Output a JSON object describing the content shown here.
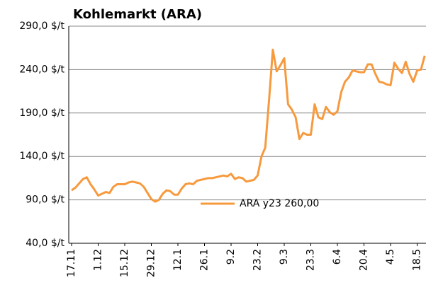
{
  "chart_data": {
    "type": "line",
    "title": "Kohlemarkt (ARA)",
    "categories": [
      "17.11",
      null,
      null,
      null,
      null,
      null,
      null,
      "1.12",
      null,
      null,
      null,
      null,
      null,
      null,
      "15.12",
      null,
      null,
      null,
      null,
      null,
      null,
      "29.12",
      null,
      null,
      null,
      null,
      null,
      null,
      "12.1",
      null,
      null,
      null,
      null,
      null,
      null,
      "26.1",
      null,
      null,
      null,
      null,
      null,
      null,
      "9.2",
      null,
      null,
      null,
      null,
      null,
      null,
      "23.2",
      null,
      null,
      null,
      null,
      null,
      null,
      "9.3",
      null,
      null,
      null,
      null,
      null,
      null,
      "23.3",
      null,
      null,
      null,
      null,
      null,
      null,
      "6.4",
      null,
      null,
      null,
      null,
      null,
      null,
      "20.4",
      null,
      null,
      null,
      null,
      null,
      null,
      "4.5",
      null,
      null,
      null,
      null,
      null,
      null,
      "18.5",
      null,
      null
    ],
    "series": [
      {
        "name": "ARA y23 260,00",
        "color": "#f79a3e",
        "values": [
          101,
          104,
          109,
          114,
          116,
          108,
          102,
          95,
          97,
          99,
          98,
          105,
          108,
          108,
          108,
          110,
          111,
          110,
          109,
          105,
          98,
          91,
          88,
          90,
          97,
          101,
          100,
          96,
          96,
          103,
          108,
          109,
          108,
          112,
          113,
          114,
          115,
          115,
          116,
          117,
          118,
          117,
          120,
          114,
          116,
          115,
          111,
          112,
          113,
          118,
          140,
          150,
          205,
          263,
          238,
          245,
          253,
          200,
          194,
          185,
          160,
          167,
          165,
          165,
          200,
          185,
          183,
          197,
          191,
          188,
          192,
          214,
          226,
          231,
          239,
          238,
          237,
          237,
          246,
          246,
          235,
          226,
          225,
          223,
          222,
          248,
          241,
          236,
          249,
          235,
          226,
          239,
          240,
          256
        ]
      }
    ],
    "ylim": [
      40,
      290
    ],
    "yticks": [
      {
        "value": 40,
        "label": "40,0 $/t"
      },
      {
        "value": 90,
        "label": "90,0 $/t"
      },
      {
        "value": 140,
        "label": "140,0 $/t"
      },
      {
        "value": 190,
        "label": "190,0 $/t"
      },
      {
        "value": 240,
        "label": "240,0 $/t"
      },
      {
        "value": 290,
        "label": "290,0 $/t"
      }
    ],
    "grid": true,
    "legend_position": "center"
  }
}
